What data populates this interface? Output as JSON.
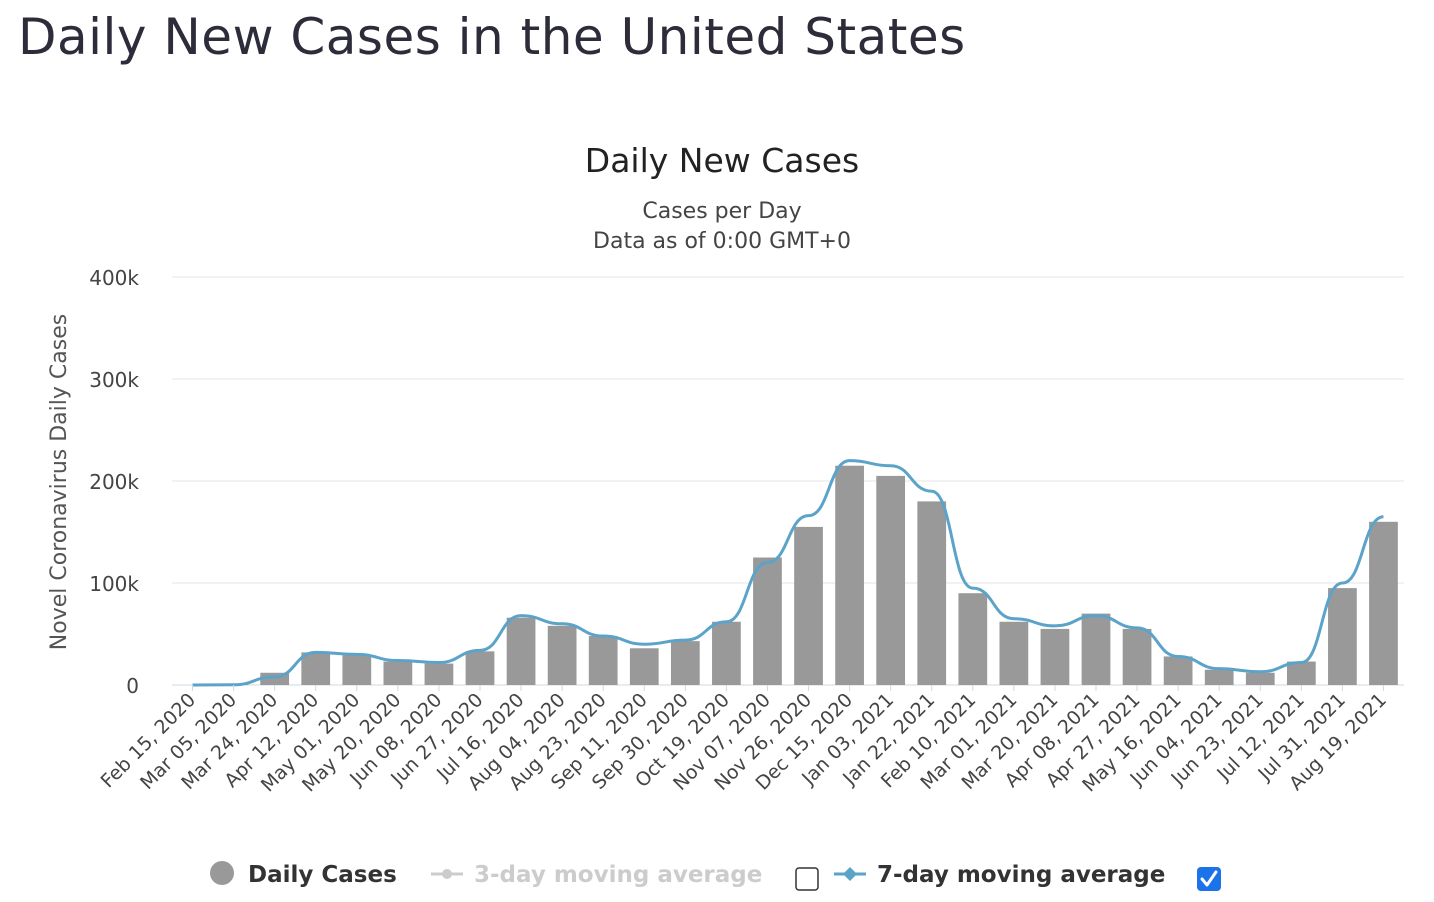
{
  "page": {
    "title": "Daily New Cases in the United States"
  },
  "chart_data": {
    "type": "bar",
    "title": "Daily New Cases",
    "subtitle_line1": "Cases per Day",
    "subtitle_line2": "Data as of 0:00 GMT+0",
    "ylabel": "Novel Coronavirus Daily Cases",
    "xlabel": "",
    "ylim": [
      0,
      400000
    ],
    "y_ticks": [
      0,
      100000,
      200000,
      300000,
      400000
    ],
    "y_tick_labels": [
      "0",
      "100k",
      "200k",
      "300k",
      "400k"
    ],
    "x_tick_labels": [
      "Feb 15, 2020",
      "Mar 05, 2020",
      "Mar 24, 2020",
      "Apr 12, 2020",
      "May 01, 2020",
      "May 20, 2020",
      "Jun 08, 2020",
      "Jun 27, 2020",
      "Jul 16, 2020",
      "Aug 04, 2020",
      "Aug 23, 2020",
      "Sep 11, 2020",
      "Sep 30, 2020",
      "Oct 19, 2020",
      "Nov 07, 2020",
      "Nov 26, 2020",
      "Dec 15, 2020",
      "Jan 03, 2021",
      "Jan 22, 2021",
      "Feb 10, 2021",
      "Mar 01, 2021",
      "Mar 20, 2021",
      "Apr 08, 2021",
      "Apr 27, 2021",
      "May 16, 2021",
      "Jun 04, 2021",
      "Jun 23, 2021",
      "Jul 12, 2021",
      "Jul 31, 2021",
      "Aug 19, 2021"
    ],
    "grid": true,
    "legend_position": "bottom",
    "colors": {
      "bars": "#999999",
      "ma3": "#cccccc",
      "ma7": "#5ba3c9",
      "grid": "#e6e6e6",
      "checkbox_checked": "#1a73e8"
    },
    "series": [
      {
        "name": "Daily Cases",
        "kind": "bar",
        "x": [
          "Feb 15, 2020",
          "Mar 05, 2020",
          "Mar 24, 2020",
          "Apr 12, 2020",
          "May 01, 2020",
          "May 20, 2020",
          "Jun 08, 2020",
          "Jun 27, 2020",
          "Jul 16, 2020",
          "Aug 04, 2020",
          "Aug 23, 2020",
          "Sep 11, 2020",
          "Sep 30, 2020",
          "Oct 19, 2020",
          "Nov 07, 2020",
          "Nov 26, 2020",
          "Dec 15, 2020",
          "Jan 03, 2021",
          "Jan 22, 2021",
          "Feb 10, 2021",
          "Mar 01, 2021",
          "Mar 20, 2021",
          "Apr 08, 2021",
          "Apr 27, 2021",
          "May 16, 2021",
          "Jun 04, 2021",
          "Jun 23, 2021",
          "Jul 12, 2021",
          "Jul 31, 2021",
          "Aug 19, 2021"
        ],
        "values": [
          0,
          300,
          12000,
          32000,
          29000,
          23000,
          21000,
          33000,
          66000,
          58000,
          48000,
          36000,
          43000,
          62000,
          125000,
          155000,
          215000,
          205000,
          180000,
          90000,
          62000,
          55000,
          70000,
          55000,
          28000,
          15000,
          12000,
          23000,
          95000,
          160000
        ]
      },
      {
        "name": "3-day moving average",
        "kind": "line",
        "visible": false
      },
      {
        "name": "7-day moving average",
        "kind": "line",
        "visible": true,
        "x": [
          "Feb 15, 2020",
          "Mar 05, 2020",
          "Mar 24, 2020",
          "Apr 12, 2020",
          "May 01, 2020",
          "May 20, 2020",
          "Jun 08, 2020",
          "Jun 27, 2020",
          "Jul 16, 2020",
          "Aug 04, 2020",
          "Aug 23, 2020",
          "Sep 11, 2020",
          "Sep 30, 2020",
          "Oct 19, 2020",
          "Nov 07, 2020",
          "Nov 26, 2020",
          "Dec 15, 2020",
          "Jan 03, 2021",
          "Jan 22, 2021",
          "Feb 10, 2021",
          "Mar 01, 2021",
          "Mar 20, 2021",
          "Apr 08, 2021",
          "Apr 27, 2021",
          "May 16, 2021",
          "Jun 04, 2021",
          "Jun 23, 2021",
          "Jul 12, 2021",
          "Jul 31, 2021",
          "Aug 19, 2021"
        ],
        "values": [
          0,
          200,
          8000,
          32000,
          30000,
          24000,
          22000,
          34000,
          68000,
          60000,
          48000,
          40000,
          44000,
          62000,
          120000,
          166000,
          220000,
          215000,
          190000,
          95000,
          65000,
          58000,
          68000,
          56000,
          28000,
          16000,
          13000,
          22000,
          100000,
          165000
        ]
      }
    ]
  },
  "legend": {
    "daily_cases_label": "Daily Cases",
    "ma3_label": "3-day moving average",
    "ma7_label": "7-day moving average",
    "ma3_checked": false,
    "ma7_checked": true
  }
}
